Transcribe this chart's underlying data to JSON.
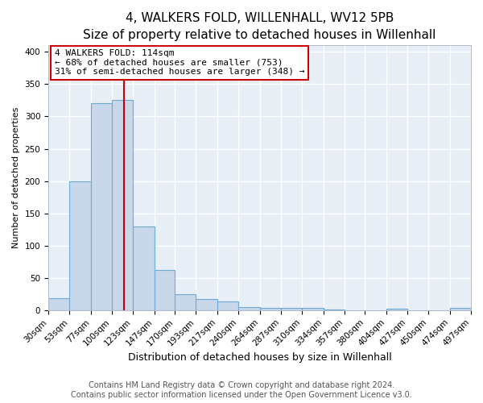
{
  "title": "4, WALKERS FOLD, WILLENHALL, WV12 5PB",
  "subtitle": "Size of property relative to detached houses in Willenhall",
  "xlabel": "Distribution of detached houses by size in Willenhall",
  "ylabel": "Number of detached properties",
  "bar_color": "#c8d8ea",
  "bar_edge_color": "#6aaad4",
  "background_color": "#e8eef6",
  "fig_background_color": "#ffffff",
  "grid_color": "#ffffff",
  "vline_x": 114,
  "vline_color": "#cc0000",
  "annotation_text": "4 WALKERS FOLD: 114sqm\n← 68% of detached houses are smaller (753)\n31% of semi-detached houses are larger (348) →",
  "annotation_box_edge": "#cc0000",
  "bin_edges": [
    30,
    53,
    77,
    100,
    123,
    147,
    170,
    193,
    217,
    240,
    264,
    287,
    310,
    334,
    357,
    380,
    404,
    427,
    450,
    474,
    497
  ],
  "bar_heights": [
    18,
    200,
    320,
    325,
    130,
    62,
    25,
    17,
    13,
    5,
    3,
    4,
    3,
    1,
    0,
    0,
    2,
    0,
    0,
    4
  ],
  "ylim": [
    0,
    410
  ],
  "yticks": [
    0,
    50,
    100,
    150,
    200,
    250,
    300,
    350,
    400
  ],
  "footer_text": "Contains HM Land Registry data © Crown copyright and database right 2024.\nContains public sector information licensed under the Open Government Licence v3.0.",
  "title_fontsize": 11,
  "xlabel_fontsize": 9,
  "ylabel_fontsize": 8,
  "tick_fontsize": 7.5,
  "annotation_fontsize": 8,
  "footer_fontsize": 7
}
